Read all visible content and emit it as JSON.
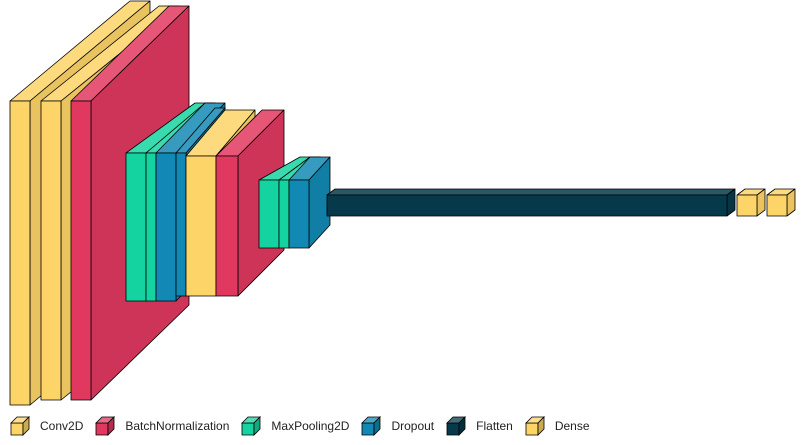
{
  "colors": {
    "Conv2D": "#fdd467",
    "BatchNormalization": "#e0385f",
    "MaxPooling2D": "#15d3a0",
    "Dropout": "#1289b4",
    "Flatten": "#063a4b",
    "Dense": "#fdd467"
  },
  "layers": [
    "Conv2D",
    "Conv2D",
    "BatchNormalization",
    "MaxPooling2D",
    "MaxPooling2D",
    "Dropout",
    "Dropout",
    "Conv2D",
    "BatchNormalization",
    "MaxPooling2D",
    "MaxPooling2D",
    "Dropout",
    "Flatten",
    "Dense",
    "Dense"
  ],
  "legend": [
    {
      "label": "Conv2D",
      "icon": "conv2d-cube-icon"
    },
    {
      "label": "BatchNormalization",
      "icon": "batchnormalization-cube-icon"
    },
    {
      "label": "MaxPooling2D",
      "icon": "maxpooling2d-cube-icon"
    },
    {
      "label": "Dropout",
      "icon": "dropout-cube-icon"
    },
    {
      "label": "Flatten",
      "icon": "flatten-cube-icon"
    },
    {
      "label": "Dense",
      "icon": "dense-cube-icon"
    }
  ]
}
